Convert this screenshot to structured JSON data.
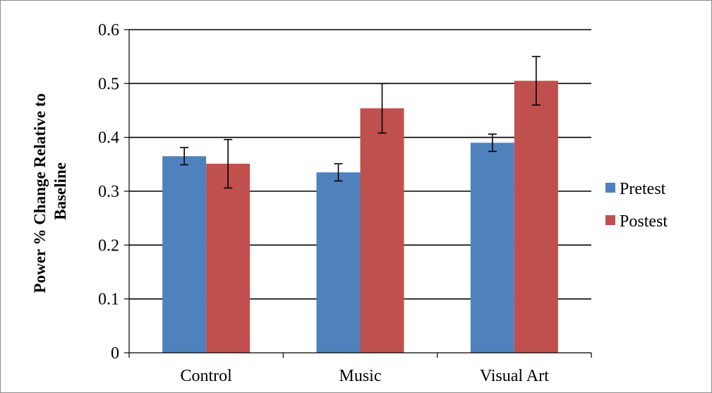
{
  "chart_data": {
    "type": "bar",
    "title": "",
    "xlabel": "",
    "ylabel_lines": [
      "Power % Change Relative to",
      "Baseline"
    ],
    "ylim": [
      0,
      0.6
    ],
    "y_ticks": [
      "0",
      "0.1",
      "0.2",
      "0.3",
      "0.4",
      "0.5",
      "0.6"
    ],
    "grid": true,
    "legend_position": "right",
    "categories": [
      "Control",
      "Music",
      "Visual Art"
    ],
    "series": [
      {
        "name": "Pretest",
        "color": "#4f81bd",
        "values": [
          0.365,
          0.335,
          0.39
        ],
        "errors": [
          0.016,
          0.016,
          0.016
        ]
      },
      {
        "name": "Postest",
        "color": "#c0504d",
        "values": [
          0.351,
          0.454,
          0.505
        ],
        "errors": [
          0.045,
          0.046,
          0.045
        ]
      }
    ]
  }
}
